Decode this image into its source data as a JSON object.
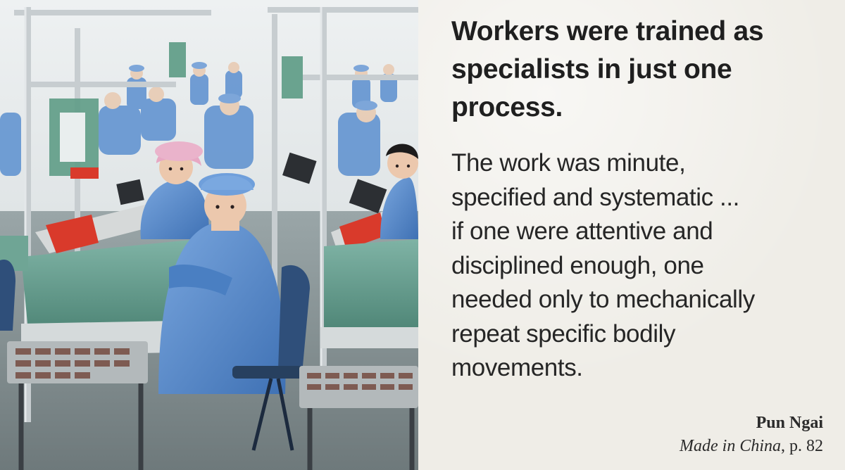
{
  "headline": "Workers were trained as specialists in just one process.",
  "quote_lines": [
    "The work was minute,",
    "specified and systematic ...",
    "if one were attentive and",
    "disciplined enough, one",
    "needed only to mechanically",
    "repeat specific bodily",
    "movements."
  ],
  "attribution": {
    "author": "Pun Ngai",
    "book_title": "Made in China",
    "page_ref": ", p. 82"
  },
  "colors": {
    "uniform_blue": "#5b8fcf",
    "tray_red": "#d93a2b",
    "bench_green": "#6fa595",
    "panel_bg": "#efede7"
  }
}
